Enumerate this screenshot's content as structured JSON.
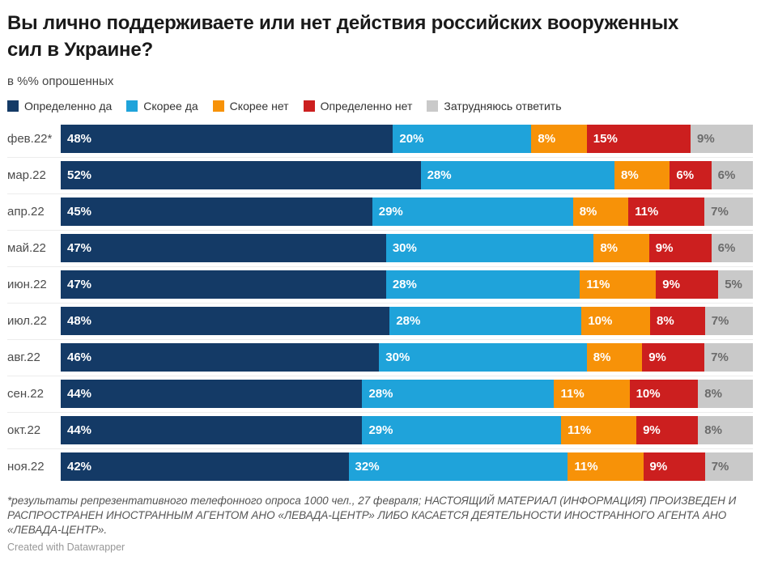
{
  "title_line1": "Вы лично поддерживаете или нет действия российских вооруженных",
  "title_line2": "сил в Украине?",
  "subtitle": "в %% опрошенных",
  "chart_data": {
    "type": "bar",
    "stacked": true,
    "orientation": "horizontal",
    "title": "Вы лично поддерживаете или нет действия российских вооруженных сил в Украине?",
    "subtitle": "в %% опрошенных",
    "value_suffix": "%",
    "legend_position": "top",
    "axis_range": [
      0,
      100
    ],
    "grid": false,
    "categories": [
      "фев.22*",
      "мар.22",
      "апр.22",
      "май.22",
      "июн.22",
      "июл.22",
      "авг.22",
      "сен.22",
      "окт.22",
      "ноя.22"
    ],
    "series": [
      {
        "name": "Определенно да",
        "color": "#143a66",
        "label_color": "#ffffff",
        "values": [
          48,
          52,
          45,
          47,
          47,
          48,
          46,
          44,
          44,
          42
        ]
      },
      {
        "name": "Скорее да",
        "color": "#1fa3da",
        "label_color": "#ffffff",
        "values": [
          20,
          28,
          29,
          30,
          28,
          28,
          30,
          28,
          29,
          32
        ]
      },
      {
        "name": "Скорее нет",
        "color": "#f79208",
        "label_color": "#ffffff",
        "values": [
          8,
          8,
          8,
          8,
          11,
          10,
          8,
          11,
          11,
          11
        ]
      },
      {
        "name": "Определенно нет",
        "color": "#cc1f1f",
        "label_color": "#ffffff",
        "values": [
          15,
          6,
          11,
          9,
          9,
          8,
          9,
          10,
          9,
          9
        ]
      },
      {
        "name": "Затрудняюсь ответить",
        "color": "#c9c9c9",
        "label_color": "#6b6b6b",
        "values": [
          9,
          6,
          7,
          6,
          5,
          7,
          7,
          8,
          8,
          7
        ]
      }
    ]
  },
  "footnote": "*результаты репрезентативного телефонного опроса 1000 чел., 27 февраля; НАСТОЯЩИЙ МАТЕРИАЛ (ИНФОРМАЦИЯ) ПРОИЗВЕДЕН И РАСПРОСТРАНЕН ИНОСТРАННЫМ АГЕНТОМ АНО «ЛЕВАДА-ЦЕНТР» ЛИБО КАСАЕТСЯ ДЕЯТЕЛЬНОСТИ ИНОСТРАННОГО АГЕНТА АНО «ЛЕВАДА-ЦЕНТР».",
  "attribution": "Created with Datawrapper"
}
